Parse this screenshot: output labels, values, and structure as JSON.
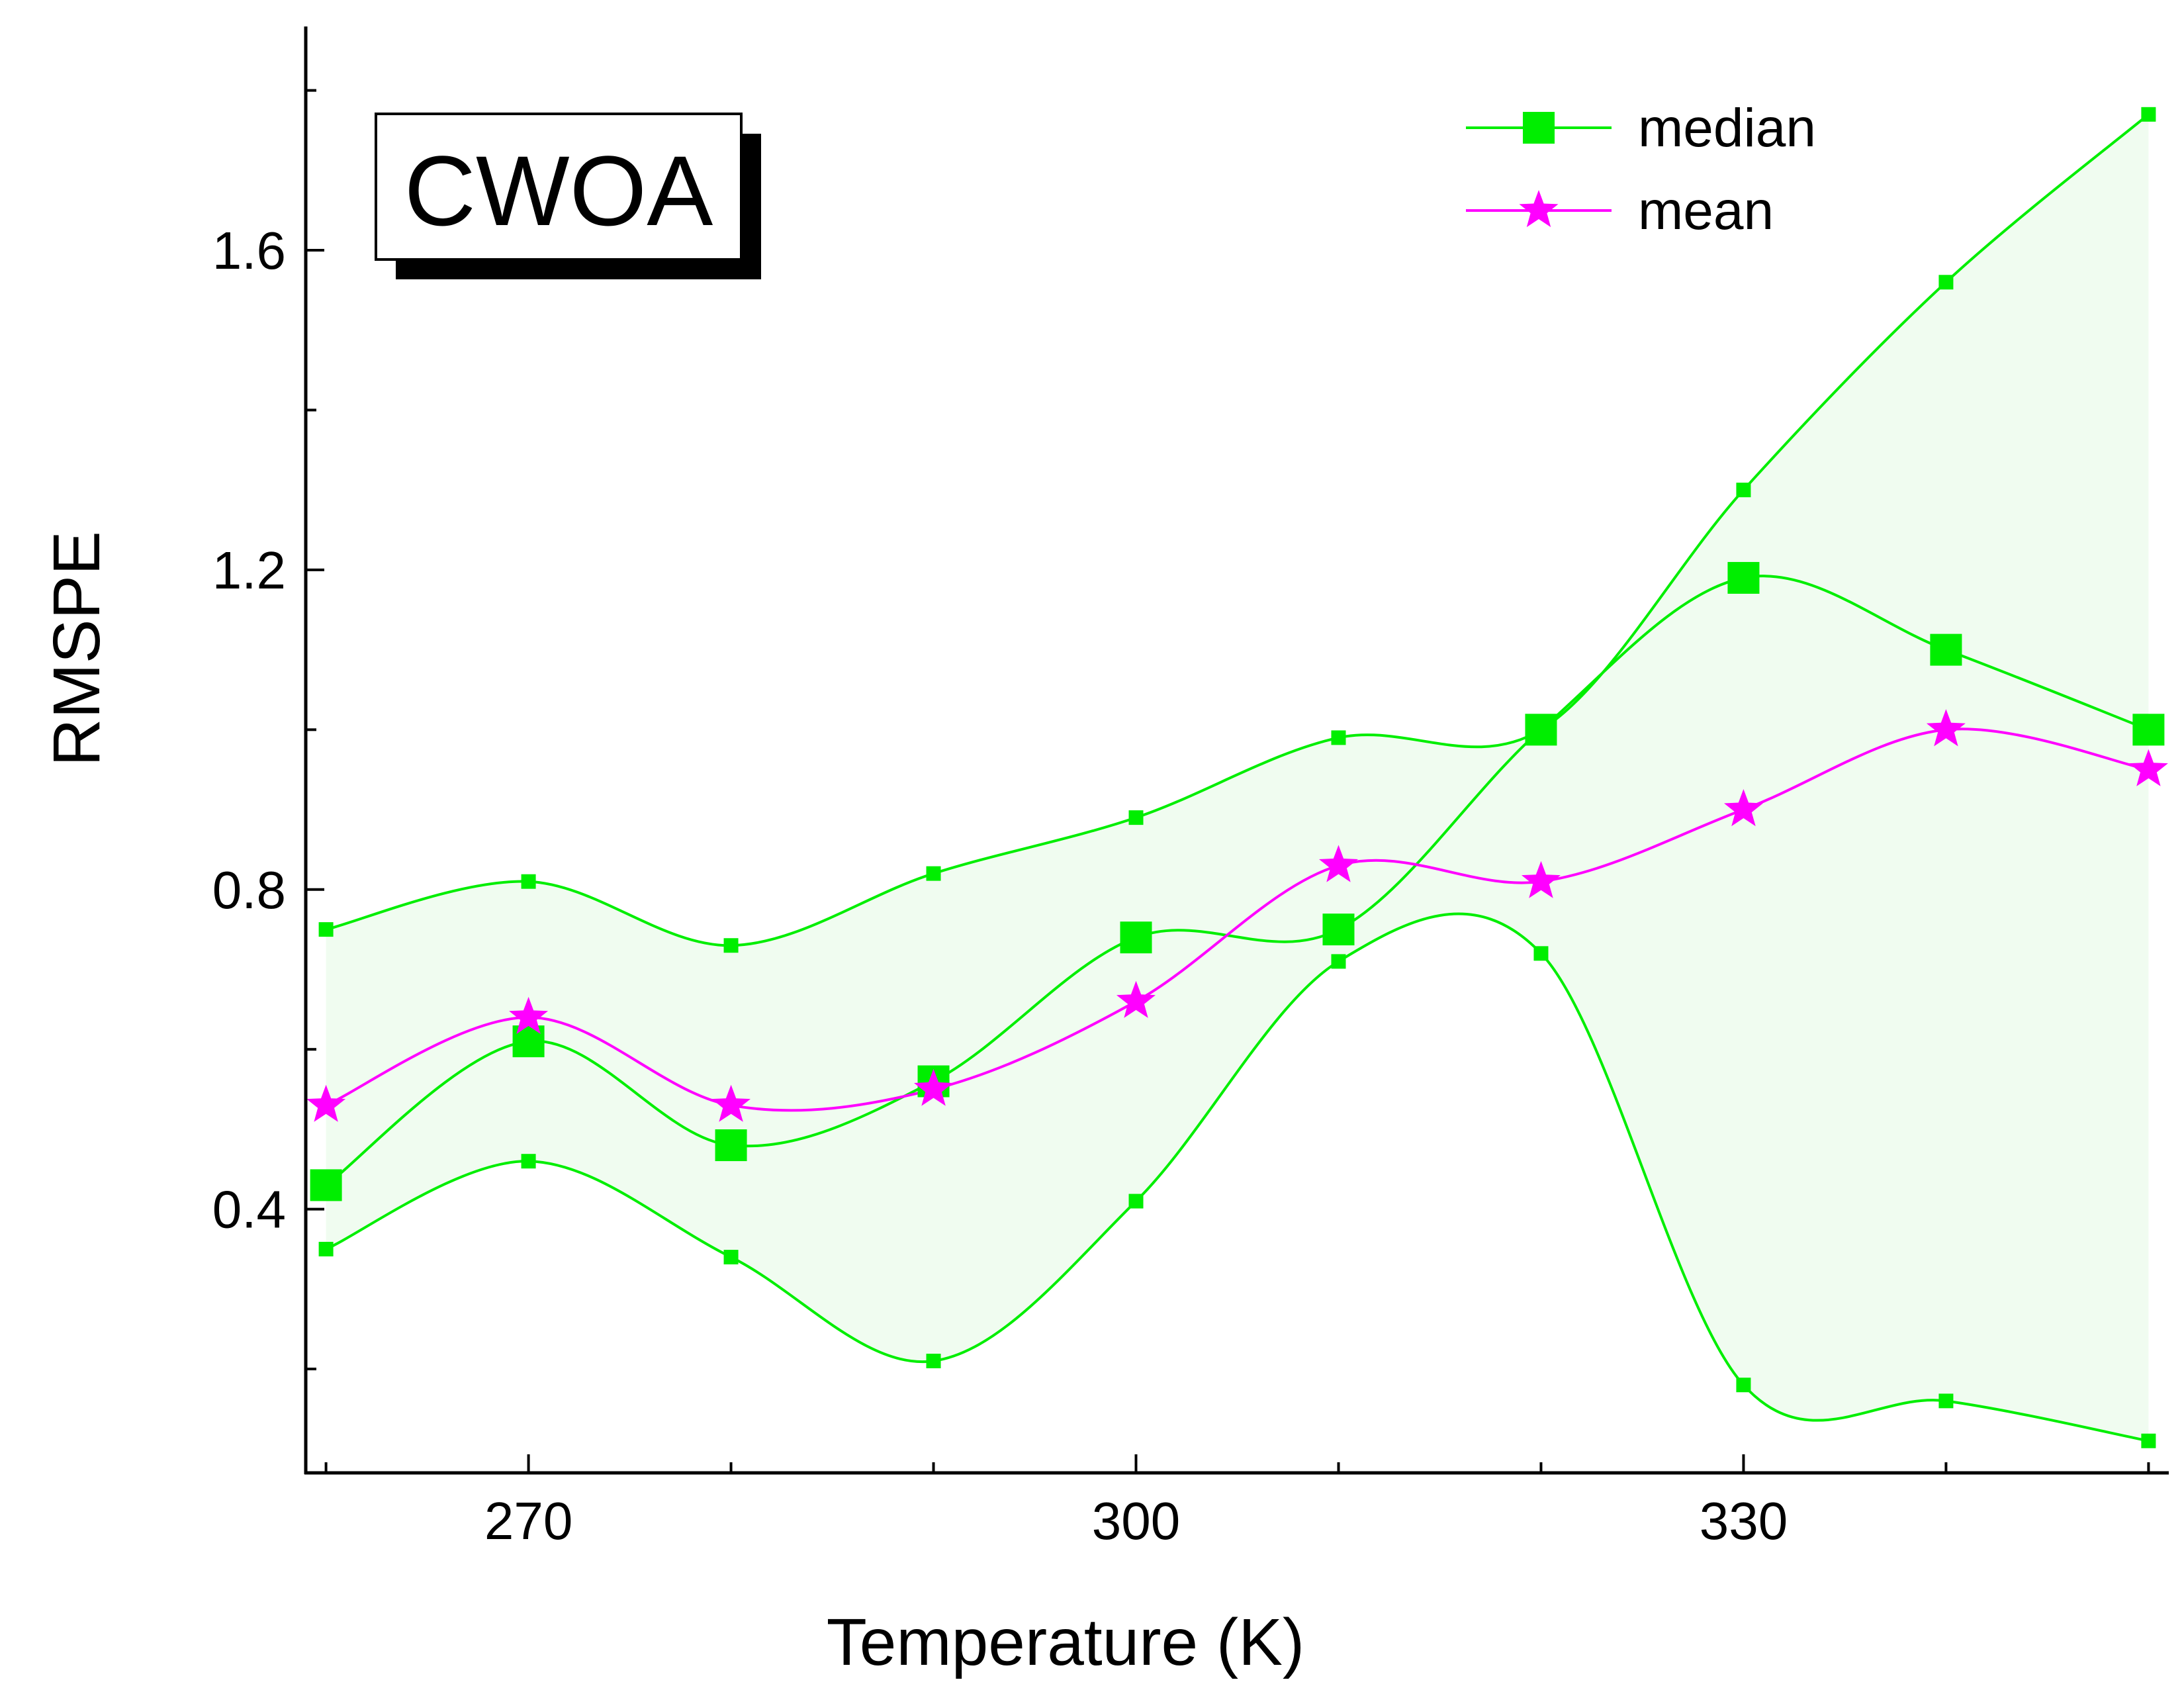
{
  "chart_data": {
    "type": "line",
    "title": "",
    "badge": "CWOA",
    "xlabel": "Temperature (K)",
    "ylabel": "RMSPE",
    "xlim": [
      259,
      351
    ],
    "ylim": [
      0.07,
      1.88
    ],
    "xticks": [
      270,
      300,
      330
    ],
    "yticks": [
      0.4,
      0.8,
      1.2,
      1.6
    ],
    "x_tick_labels": [
      "270",
      "300",
      "330"
    ],
    "y_tick_labels": [
      "0.4",
      "0.8",
      "1.2",
      "1.6"
    ],
    "grid": false,
    "legend_position": "top-right",
    "x": [
      260,
      270,
      280,
      290,
      300,
      310,
      320,
      330,
      340,
      350
    ],
    "series": [
      {
        "name": "median",
        "marker": "square",
        "color": "#00ee00",
        "values": [
          0.43,
          0.61,
          0.48,
          0.56,
          0.74,
          0.75,
          1.0,
          1.19,
          1.1,
          1.0
        ]
      },
      {
        "name": "mean",
        "marker": "star",
        "color": "#ff00ff",
        "values": [
          0.53,
          0.64,
          0.53,
          0.55,
          0.66,
          0.83,
          0.81,
          0.9,
          1.0,
          0.95
        ]
      }
    ],
    "band": {
      "color": "#00ee00",
      "fill": "#f0fcf0",
      "upper": [
        0.75,
        0.81,
        0.73,
        0.82,
        0.89,
        0.99,
        1.0,
        1.3,
        1.56,
        1.77
      ],
      "lower": [
        0.35,
        0.46,
        0.34,
        0.21,
        0.41,
        0.71,
        0.72,
        0.18,
        0.16,
        0.11
      ]
    }
  }
}
